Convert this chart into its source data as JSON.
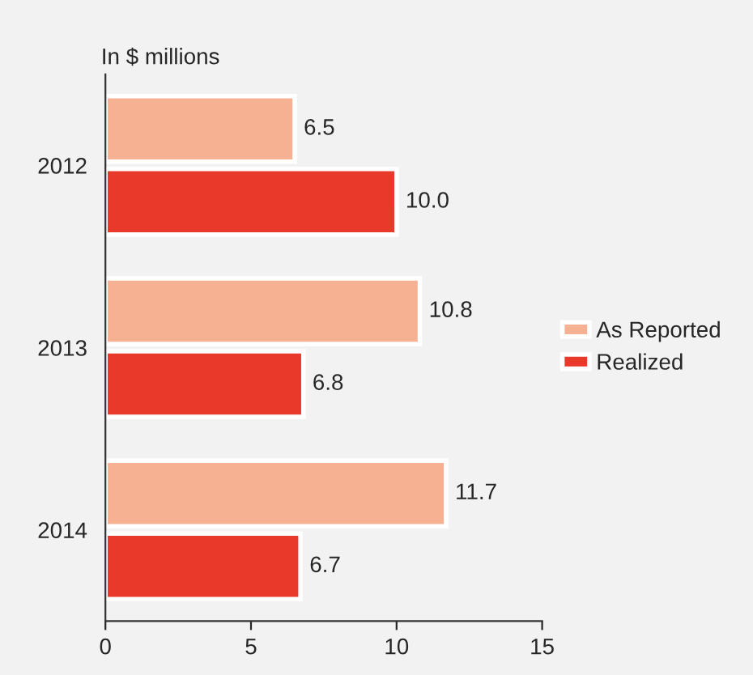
{
  "chart_data": {
    "type": "bar",
    "orientation": "horizontal",
    "ylabel": "In $ millions",
    "categories": [
      "2012",
      "2013",
      "2014"
    ],
    "series": [
      {
        "name": "As Reported",
        "color": "#f6b092",
        "values": [
          6.5,
          10.8,
          11.7
        ],
        "value_labels": [
          "6.5",
          "10.8",
          "11.7"
        ]
      },
      {
        "name": "Realized",
        "color": "#e8392a",
        "values": [
          10.0,
          6.8,
          6.7
        ],
        "value_labels": [
          "10.0",
          "6.8",
          "6.7"
        ]
      }
    ],
    "xlim": [
      0,
      15
    ],
    "xticks": [
      0,
      5,
      10,
      15
    ],
    "grid": false,
    "legend": "right"
  }
}
